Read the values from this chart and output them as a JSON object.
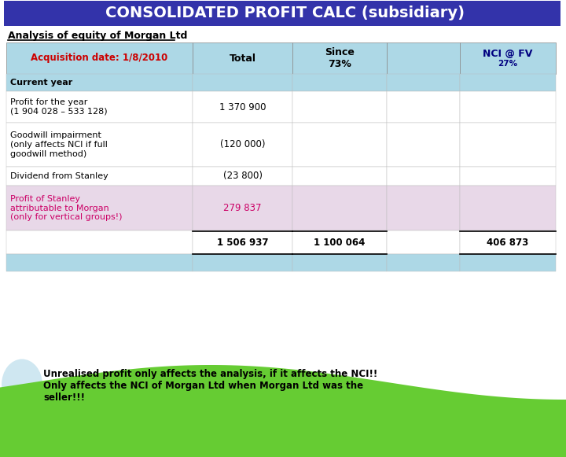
{
  "title": "CONSOLIDATED PROFIT CALC (subsidiary)",
  "title_bg": "#3333AA",
  "title_color": "#FFFFFF",
  "subtitle": "Analysis of equity of Morgan Ltd",
  "header_bg": "#ADD8E6",
  "header_text_color_special": "#CC0000",
  "header_nci_color": "#000080",
  "rows": [
    {
      "label": "Current year",
      "values": [
        "",
        "",
        "",
        ""
      ],
      "bold": true,
      "bg": "#ADD8E6",
      "label_color": "#000000"
    },
    {
      "label": "Profit for the year\n(1 904 028 – 533 128)",
      "values": [
        "1 370 900",
        "",
        "",
        ""
      ],
      "bold": false,
      "bg": "#FFFFFF",
      "label_color": "#000000"
    },
    {
      "label": "Goodwill impairment\n(only affects NCI if full\ngoodwill method)",
      "values": [
        "(120 000)",
        "",
        "",
        ""
      ],
      "bold": false,
      "bg": "#FFFFFF",
      "label_color": "#000000"
    },
    {
      "label": "Dividend from Stanley",
      "values": [
        "(23 800)",
        "",
        "",
        ""
      ],
      "bold": false,
      "bg": "#FFFFFF",
      "label_color": "#000000"
    },
    {
      "label": "Profit of Stanley\nattributable to Morgan\n(only for vertical groups!)",
      "values": [
        "279 837",
        "",
        "",
        ""
      ],
      "bold": false,
      "bg": "#E8D8E8",
      "label_color": "#CC0066",
      "value_color": "#CC0066"
    },
    {
      "label": "",
      "values": [
        "1 506 937",
        "1 100 064",
        "",
        "406 873"
      ],
      "bold": true,
      "bg": "#FFFFFF",
      "label_color": "#000000",
      "is_total": true
    },
    {
      "label": "",
      "values": [
        "",
        "",
        "",
        ""
      ],
      "bold": false,
      "bg": "#ADD8E6",
      "label_color": "#000000"
    }
  ],
  "note_text": "Unrealised profit only affects the analysis, if it affects the NCI!!\nOnly affects the NCI of Morgan Ltd when Morgan Ltd was the\nseller!!!",
  "note_color": "#000000",
  "green_wave_color": "#66CC33",
  "fig_width": 7.2,
  "fig_height": 5.81,
  "dpi": 100
}
